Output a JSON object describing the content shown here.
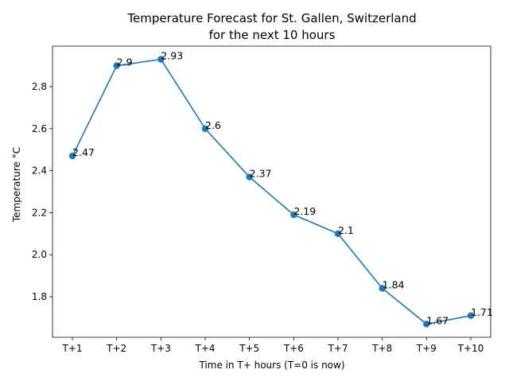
{
  "chart_data": {
    "type": "line",
    "title_lines": [
      "Temperature Forecast for St. Gallen, Switzerland",
      "for the next 10 hours"
    ],
    "xlabel": "Time in T+ hours (T=0 is now)",
    "ylabel": "Temperature °C",
    "categories": [
      "T+1",
      "T+2",
      "T+3",
      "T+4",
      "T+5",
      "T+6",
      "T+7",
      "T+8",
      "T+9",
      "T+10"
    ],
    "values": [
      2.47,
      2.9,
      2.93,
      2.6,
      2.37,
      2.19,
      2.1,
      1.84,
      1.67,
      1.71
    ],
    "point_labels": [
      "2.47",
      "2.9",
      "2.93",
      "2.6",
      "2.37",
      "2.19",
      "2.1",
      "1.84",
      "1.67",
      "1.71"
    ],
    "yticks": [
      "1.8",
      "2.0",
      "2.2",
      "2.4",
      "2.6",
      "2.8"
    ],
    "ylim": [
      1.607,
      2.993
    ],
    "grid": false,
    "markers": true,
    "line_color": "#1f77b4"
  }
}
